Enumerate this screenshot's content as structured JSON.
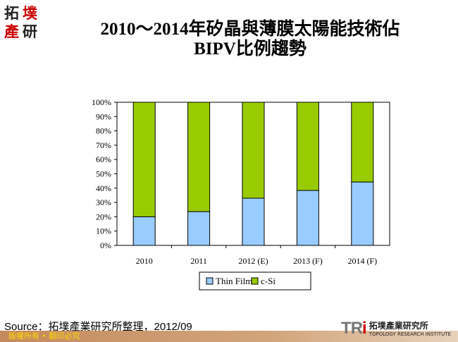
{
  "logo": {
    "chars": [
      "拓",
      "墣",
      "產",
      "研"
    ]
  },
  "title": {
    "line1": "2010～2014年矽晶與薄膜太陽能技術佔",
    "line2": "BIPV比例趨勢"
  },
  "chart_data": {
    "type": "bar",
    "stacked": true,
    "percent": true,
    "categories": [
      "2010",
      "2011",
      "2012 (E)",
      "2013 (F)",
      "2014 (F)"
    ],
    "series": [
      {
        "name": "Thin Film",
        "color": "#99ccff",
        "values": [
          20,
          23.6,
          33,
          38.4,
          44.3
        ]
      },
      {
        "name": "c-Si",
        "color": "#99cc00",
        "values": [
          80,
          76.4,
          67,
          61.6,
          55.7
        ]
      }
    ],
    "ylim": [
      0,
      100
    ],
    "yticks": [
      "0%",
      "10%",
      "20%",
      "30%",
      "40%",
      "50%",
      "60%",
      "70%",
      "80%",
      "90%",
      "100%"
    ],
    "grid": false,
    "legend": "bottom"
  },
  "source": "Source：拓墣產業研究所整理，2012/09",
  "footer": {
    "copyright": "版權所有 • 翻印必究",
    "org_cn": "拓墣產業研究所",
    "org_en": "TOPOLOGY RESEARCH INSTITUTE",
    "mark_a": "TR",
    "mark_b": "i"
  }
}
